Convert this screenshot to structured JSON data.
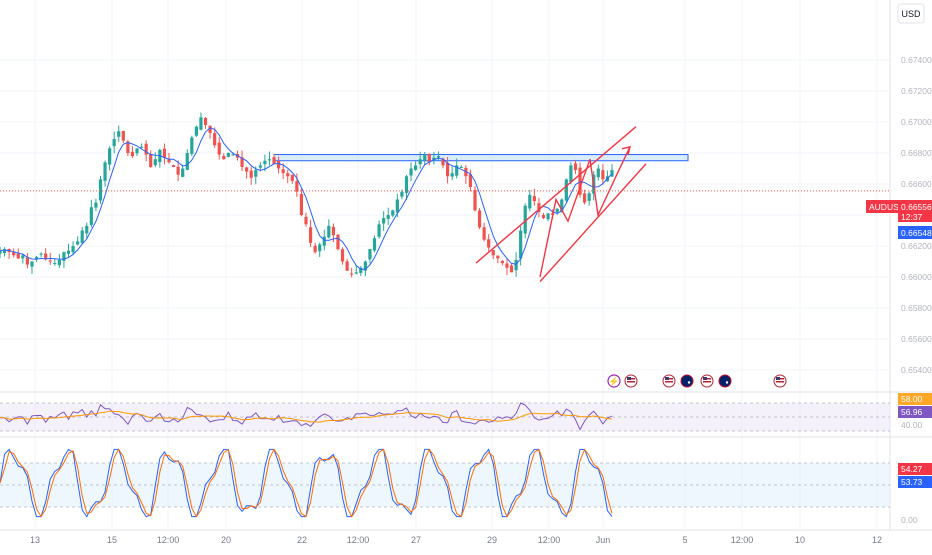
{
  "currency_button": "USD",
  "symbol": "AUDUSD",
  "last_price": "0.66556",
  "countdown": "12:37",
  "secondary_price": "0.66548",
  "colors": {
    "up": "#26a69a",
    "down": "#ef5350",
    "ma": "#2962ff",
    "drawing": "#f23645",
    "zone_fill": "#bbdefb",
    "zone_border": "#2962ff",
    "rsi_line": "#7e57c2",
    "rsi_ma": "#ff9800",
    "stoch_k": "#2962ff",
    "stoch_d": "#ff6d00",
    "grid": "#f0f3fa",
    "axis_text": "#b2b5be"
  },
  "events": [
    {
      "icon": "lightning-event-icon",
      "label": "⚡"
    },
    {
      "icon": "us-flag-event-icon",
      "label": ""
    },
    {
      "icon": "us-flag-event-icon",
      "label": ""
    },
    {
      "icon": "au-flag-event-icon",
      "label": ""
    },
    {
      "icon": "us-flag-event-icon",
      "label": ""
    },
    {
      "icon": "au-flag-event-icon",
      "label": ""
    },
    {
      "icon": "us-flag-event-icon",
      "label": ""
    }
  ],
  "chart_data": [
    {
      "type": "candlestick",
      "series": [
        {
          "name": "AUDUSD"
        }
      ],
      "ylim": [
        0.6535,
        0.6755
      ],
      "y_ticks": [
        "0.67400",
        "0.67200",
        "0.67000",
        "0.66800",
        "0.66600",
        "0.66400",
        "0.66200",
        "0.66000",
        "0.65800",
        "0.65600",
        "0.65400"
      ],
      "x_ticks": [
        "13",
        "15",
        "12:00",
        "20",
        "22",
        "12:00",
        "27",
        "29",
        "12:00",
        "Jun",
        "5",
        "12:00",
        "10",
        "12"
      ],
      "close_path": [
        0.6617,
        0.6618,
        0.6616,
        0.6614,
        0.6612,
        0.6614,
        0.6608,
        0.661,
        0.6613,
        0.6615,
        0.6612,
        0.661,
        0.6609,
        0.6611,
        0.6616,
        0.6617,
        0.662,
        0.6623,
        0.663,
        0.6633,
        0.6645,
        0.6648,
        0.6663,
        0.6674,
        0.6683,
        0.6689,
        0.6694,
        0.6688,
        0.668,
        0.6678,
        0.6683,
        0.6684,
        0.6679,
        0.6671,
        0.6676,
        0.6682,
        0.6677,
        0.6674,
        0.6671,
        0.6666,
        0.667,
        0.668,
        0.669,
        0.6697,
        0.6703,
        0.6698,
        0.6693,
        0.6685,
        0.6679,
        0.6676,
        0.668,
        0.6679,
        0.6677,
        0.6671,
        0.6668,
        0.6664,
        0.6669,
        0.6672,
        0.6675,
        0.6676,
        0.6673,
        0.667,
        0.6667,
        0.6665,
        0.6662,
        0.6655,
        0.664,
        0.6634,
        0.6622,
        0.6616,
        0.6621,
        0.6626,
        0.6633,
        0.6627,
        0.6618,
        0.661,
        0.6604,
        0.6602,
        0.6603,
        0.6606,
        0.661,
        0.6618,
        0.6625,
        0.6634,
        0.6638,
        0.664,
        0.6643,
        0.665,
        0.6655,
        0.6665,
        0.667,
        0.6672,
        0.6676,
        0.6679,
        0.6674,
        0.6677,
        0.6678,
        0.6672,
        0.6665,
        0.6667,
        0.6672,
        0.6671,
        0.6665,
        0.6658,
        0.6643,
        0.6632,
        0.6624,
        0.6619,
        0.6614,
        0.6612,
        0.6609,
        0.6606,
        0.6603,
        0.6611,
        0.663,
        0.6646,
        0.6653,
        0.6649,
        0.6642,
        0.6638,
        0.6641,
        0.664,
        0.6644,
        0.665,
        0.6663,
        0.6672,
        0.6669,
        0.6653,
        0.6648,
        0.6654,
        0.6666,
        0.667,
        0.6663,
        0.6665,
        0.6669
      ],
      "annotations": [
        "horizontal resistance zone 0.6675–0.6679",
        "ascending channel",
        "upward projection arrow"
      ]
    },
    {
      "type": "line",
      "name": "RSI",
      "series": [
        {
          "name": "RSI",
          "value": "56.96"
        },
        {
          "name": "RSI-based MA",
          "value": "58.00"
        }
      ],
      "bands": [
        70,
        50,
        30
      ],
      "y_ticks": [
        "58.00",
        "40.00"
      ]
    },
    {
      "type": "line",
      "name": "Stochastic RSI",
      "series": [
        {
          "name": "%K",
          "value": "54.27"
        },
        {
          "name": "%D",
          "value": "53.73"
        }
      ],
      "bands": [
        80,
        50,
        20
      ],
      "y_ticks": [
        "0.00"
      ]
    }
  ]
}
